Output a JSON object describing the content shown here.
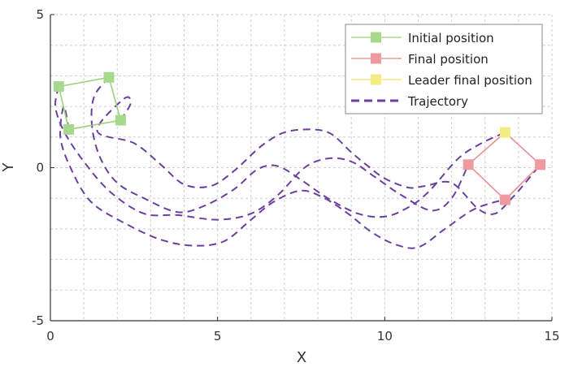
{
  "chart_data": {
    "type": "line",
    "xlabel": "X",
    "ylabel": "Y",
    "xlim": [
      0,
      15
    ],
    "ylim": [
      -5,
      5
    ],
    "x_ticks": [
      0,
      5,
      10,
      15
    ],
    "y_ticks": [
      -5,
      0,
      5
    ],
    "x_minor_grid": [
      1,
      2,
      3,
      4,
      6,
      7,
      8,
      9,
      11,
      12,
      13,
      14
    ],
    "y_minor_grid": [
      -4,
      -3,
      -2,
      -1,
      1,
      2,
      3,
      4
    ],
    "grid": true,
    "grid_style": "dashed",
    "legend_position": "top-right",
    "legend": [
      {
        "label": "Initial position",
        "marker": "square",
        "color": "#a8d88c"
      },
      {
        "label": "Final position",
        "marker": "square",
        "color": "#ee9a9e"
      },
      {
        "label": "Leader final position",
        "marker": "square",
        "color": "#f2ec82"
      },
      {
        "label": "Trajectory",
        "marker": "dashed-line",
        "color": "#6b3fa0"
      }
    ],
    "colors": {
      "initial": "#a8d88c",
      "initial_line": "#9bd07d",
      "final": "#ee9a9e",
      "final_line": "#e98f93",
      "leader": "#f2ec82",
      "trajectory": "#6b3fa0",
      "grid": "#cfcfcf",
      "axis": "#333333"
    },
    "initial_positions": [
      [
        0.25,
        2.65
      ],
      [
        1.75,
        2.95
      ],
      [
        2.1,
        1.55
      ],
      [
        0.55,
        1.25
      ]
    ],
    "final_positions": [
      [
        12.5,
        0.1
      ],
      [
        13.6,
        1.15
      ],
      [
        14.65,
        0.1
      ],
      [
        13.6,
        -1.05
      ]
    ],
    "leader_final_position": [
      13.6,
      1.15
    ],
    "trajectories": [
      [
        [
          0.25,
          2.65
        ],
        [
          0.15,
          2.0
        ],
        [
          0.4,
          1.2
        ],
        [
          1.0,
          0.2
        ],
        [
          1.8,
          -0.8
        ],
        [
          2.8,
          -1.5
        ],
        [
          3.8,
          -1.55
        ],
        [
          5.0,
          -1.7
        ],
        [
          6.0,
          -1.5
        ],
        [
          6.8,
          -0.9
        ],
        [
          7.6,
          0.0
        ],
        [
          8.3,
          0.3
        ],
        [
          9.0,
          0.2
        ],
        [
          9.7,
          -0.3
        ],
        [
          10.5,
          -0.9
        ],
        [
          11.4,
          -1.4
        ],
        [
          12.0,
          -1.0
        ],
        [
          12.5,
          0.1
        ]
      ],
      [
        [
          1.75,
          2.95
        ],
        [
          1.3,
          2.3
        ],
        [
          1.25,
          1.3
        ],
        [
          1.5,
          0.3
        ],
        [
          2.0,
          -0.5
        ],
        [
          2.8,
          -1.0
        ],
        [
          3.8,
          -1.45
        ],
        [
          4.6,
          -1.25
        ],
        [
          5.5,
          -0.7
        ],
        [
          6.2,
          -0.05
        ],
        [
          6.8,
          0.05
        ],
        [
          7.5,
          -0.4
        ],
        [
          8.3,
          -1.0
        ],
        [
          9.2,
          -1.5
        ],
        [
          10.0,
          -1.6
        ],
        [
          10.7,
          -1.3
        ],
        [
          11.3,
          -0.8
        ],
        [
          12.2,
          0.3
        ],
        [
          12.9,
          0.8
        ],
        [
          13.6,
          1.15
        ]
      ],
      [
        [
          2.1,
          1.55
        ],
        [
          2.4,
          2.1
        ],
        [
          2.2,
          2.25
        ],
        [
          1.4,
          1.2
        ],
        [
          2.5,
          0.8
        ],
        [
          3.3,
          0.1
        ],
        [
          4.0,
          -0.55
        ],
        [
          4.8,
          -0.6
        ],
        [
          5.5,
          -0.1
        ],
        [
          6.3,
          0.7
        ],
        [
          7.0,
          1.15
        ],
        [
          7.8,
          1.25
        ],
        [
          8.4,
          1.1
        ],
        [
          9.0,
          0.5
        ],
        [
          9.5,
          0.05
        ],
        [
          10.0,
          -0.35
        ],
        [
          10.7,
          -0.65
        ],
        [
          11.2,
          -0.6
        ],
        [
          12.0,
          -0.5
        ],
        [
          12.8,
          -1.35
        ],
        [
          13.3,
          -1.5
        ],
        [
          13.8,
          -1.0
        ],
        [
          14.2,
          -0.5
        ],
        [
          14.65,
          0.1
        ]
      ],
      [
        [
          0.55,
          1.25
        ],
        [
          0.4,
          2.0
        ],
        [
          0.3,
          1.0
        ],
        [
          0.6,
          0.0
        ],
        [
          1.2,
          -1.1
        ],
        [
          2.2,
          -1.8
        ],
        [
          3.3,
          -2.35
        ],
        [
          4.3,
          -2.55
        ],
        [
          5.2,
          -2.4
        ],
        [
          6.0,
          -1.7
        ],
        [
          6.7,
          -1.1
        ],
        [
          7.5,
          -0.75
        ],
        [
          8.2,
          -1.0
        ],
        [
          8.9,
          -1.5
        ],
        [
          9.6,
          -2.1
        ],
        [
          10.3,
          -2.5
        ],
        [
          11.0,
          -2.6
        ],
        [
          11.8,
          -2.0
        ],
        [
          12.6,
          -1.4
        ],
        [
          13.2,
          -1.15
        ],
        [
          13.6,
          -1.05
        ]
      ]
    ]
  }
}
